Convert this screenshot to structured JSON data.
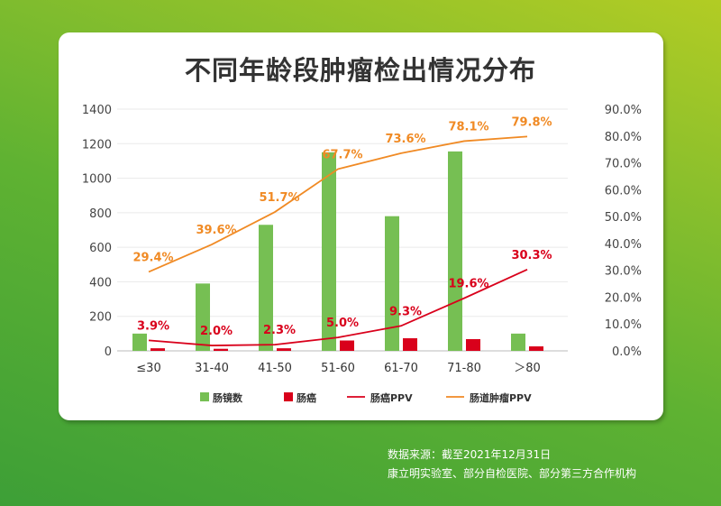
{
  "chart_data": {
    "type": "bar+line",
    "title": "不同年龄段肿瘤检出情况分布",
    "categories": [
      "≤30",
      "31-40",
      "41-50",
      "51-60",
      "61-70",
      "71-80",
      "＞80"
    ],
    "y_left": {
      "range": [
        0,
        1400
      ],
      "ticks": [
        0,
        200,
        400,
        600,
        800,
        1000,
        1200,
        1400
      ]
    },
    "y_right": {
      "range": [
        0,
        90
      ],
      "ticks": [
        "0.0%",
        "10.0%",
        "20.0%",
        "30.0%",
        "40.0%",
        "50.0%",
        "60.0%",
        "70.0%",
        "80.0%",
        "90.0%"
      ]
    },
    "grid": true,
    "legend_placement": "bottom",
    "series": [
      {
        "name": "肠镜数",
        "type": "bar",
        "axis": "left",
        "color": "#76bf53",
        "values": [
          100,
          390,
          730,
          1150,
          780,
          1155,
          100
        ]
      },
      {
        "name": "肠癌",
        "type": "bar",
        "axis": "left",
        "color": "#d9001b",
        "values": [
          15,
          12,
          15,
          60,
          73,
          68,
          26
        ]
      },
      {
        "name": "肠癌PPV",
        "type": "line",
        "axis": "right",
        "color": "#d9001b",
        "values": [
          3.9,
          2.0,
          2.3,
          5.0,
          9.3,
          19.6,
          30.3
        ],
        "labels": [
          "3.9%",
          "2.0%",
          "2.3%",
          "5.0%",
          "9.3%",
          "19.6%",
          "30.3%"
        ]
      },
      {
        "name": "肠道肿瘤PPV",
        "type": "line",
        "axis": "right",
        "color": "#f08a24",
        "values": [
          29.4,
          39.6,
          51.7,
          67.7,
          73.6,
          78.1,
          79.8
        ],
        "labels": [
          "29.4%",
          "39.6%",
          "51.7%",
          "67.7%",
          "73.6%",
          "78.1%",
          "79.8%"
        ]
      }
    ]
  },
  "source": {
    "line1": "数据来源：截至2021年12月31日",
    "line2": "康立明实验室、部分自检医院、部分第三方合作机构"
  }
}
